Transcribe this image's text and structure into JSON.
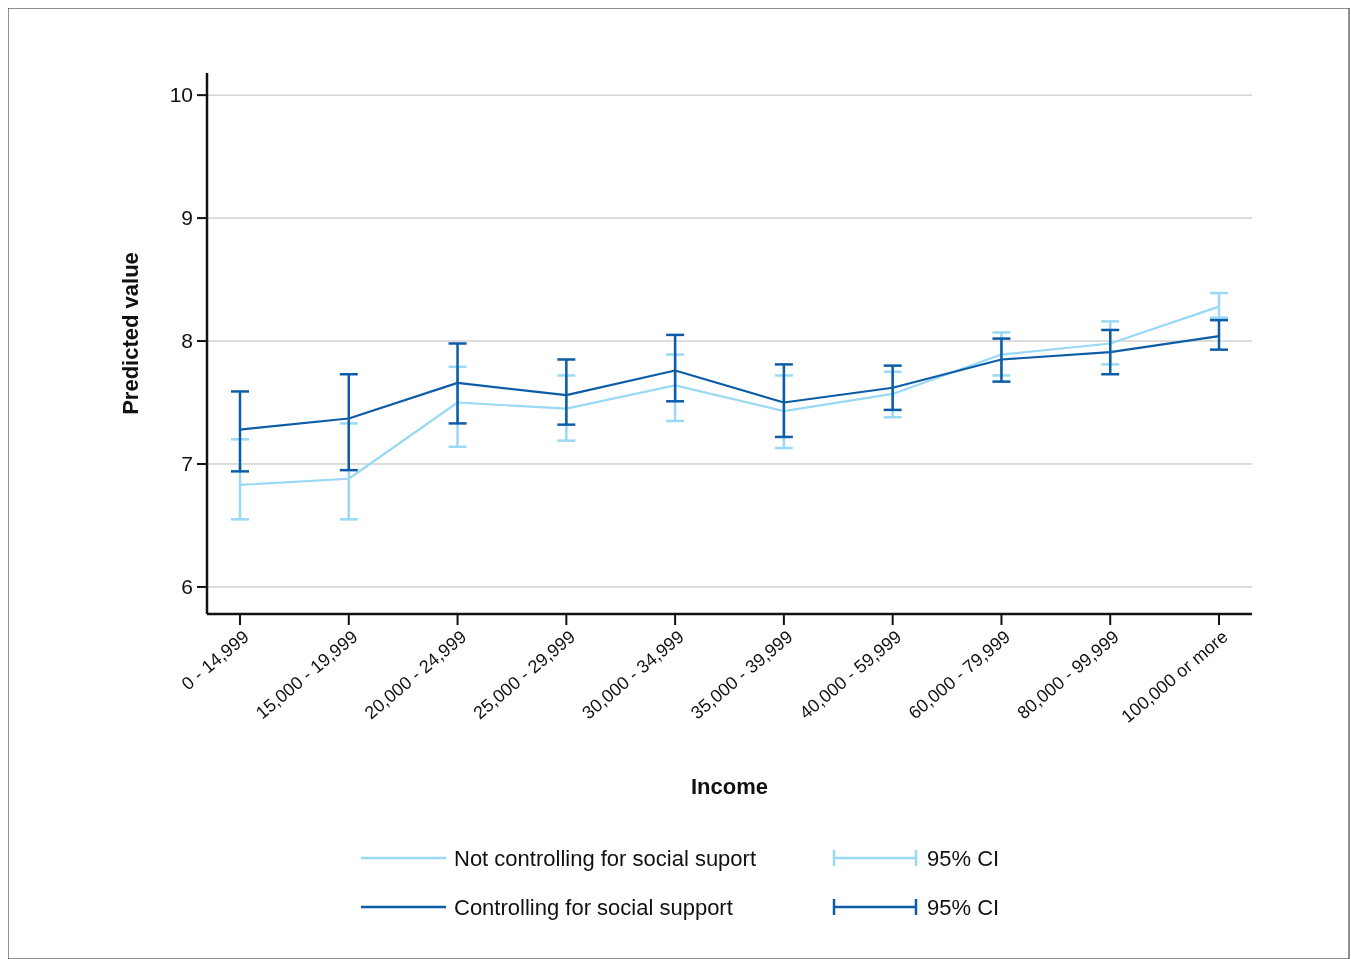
{
  "chart_data": {
    "type": "line",
    "xlabel": "Income",
    "ylabel": "Predicted value",
    "categories": [
      "0 - 14,999",
      "15,000 - 19,999",
      "20,000 - 24,999",
      "25,000 - 29,999",
      "30,000 - 34,999",
      "35,000 - 39,999",
      "40,000 - 59,999",
      "60,000 - 79,999",
      "80,000 - 99,999",
      "100,000 or more"
    ],
    "series": [
      {
        "name": "Not controlling for social suport",
        "color": "#99d9f5",
        "values": [
          6.83,
          6.88,
          7.5,
          7.45,
          7.64,
          7.43,
          7.57,
          7.89,
          7.98,
          8.28
        ],
        "errors": [
          [
            6.55,
            7.2
          ],
          [
            6.55,
            7.33
          ],
          [
            7.14,
            7.79
          ],
          [
            7.19,
            7.72
          ],
          [
            7.35,
            7.89
          ],
          [
            7.13,
            7.72
          ],
          [
            7.38,
            7.75
          ],
          [
            7.72,
            8.07
          ],
          [
            7.81,
            8.16
          ],
          [
            8.19,
            8.39
          ]
        ]
      },
      {
        "name": "Controlling for social support",
        "color": "#0d5ca8",
        "values": [
          7.28,
          7.37,
          7.66,
          7.56,
          7.76,
          7.5,
          7.62,
          7.85,
          7.91,
          8.04
        ],
        "errors": [
          [
            6.94,
            7.59
          ],
          [
            6.95,
            7.73
          ],
          [
            7.33,
            7.98
          ],
          [
            7.32,
            7.85
          ],
          [
            7.51,
            8.05
          ],
          [
            7.22,
            7.81
          ],
          [
            7.44,
            7.8
          ],
          [
            7.67,
            8.02
          ],
          [
            7.73,
            8.09
          ],
          [
            7.93,
            8.17
          ]
        ]
      }
    ],
    "annotations": [
      "95% CI",
      "95% CI"
    ],
    "ylim": [
      5.78,
      10.18
    ],
    "yticks": [
      6,
      7,
      8,
      9,
      10
    ],
    "grid": "y",
    "legend": "bottom"
  }
}
